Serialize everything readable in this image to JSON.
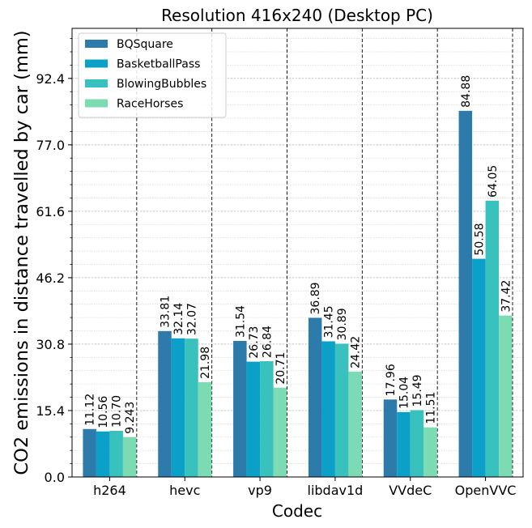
{
  "chart_data": {
    "type": "bar",
    "title": "Resolution 416x240 (Desktop PC)",
    "xlabel": "Codec",
    "ylabel": "CO2 emissions in distance travelled by car (mm)",
    "categories": [
      "h264",
      "hevc",
      "vp9",
      "libdav1d",
      "VVdeC",
      "OpenVVC"
    ],
    "ylim": [
      0,
      104.0
    ],
    "yticks": [
      "0.0",
      "15.4",
      "30.8",
      "46.2",
      "61.6",
      "77.0",
      "92.4"
    ],
    "ytick_values": [
      0.0,
      15.4,
      30.8,
      46.2,
      61.6,
      77.0,
      92.4
    ],
    "grid": true,
    "legend_position": "top-left",
    "series": [
      {
        "name": "BQSquare",
        "color": "#2c7bab",
        "values": [
          11.12,
          33.81,
          31.54,
          36.89,
          17.96,
          84.88
        ],
        "labels": [
          "11.12",
          "33.81",
          "31.54",
          "36.89",
          "17.96",
          "84.88"
        ]
      },
      {
        "name": "BasketballPass",
        "color": "#0aa0c8",
        "values": [
          10.56,
          32.14,
          26.73,
          31.45,
          15.04,
          50.58
        ],
        "labels": [
          "10.56",
          "32.14",
          "26.73",
          "31.45",
          "15.04",
          "50.58"
        ]
      },
      {
        "name": "BlowingBubbles",
        "color": "#38c1bd",
        "values": [
          10.7,
          32.07,
          26.84,
          30.89,
          15.49,
          64.05
        ],
        "labels": [
          "10.70",
          "32.07",
          "26.84",
          "30.89",
          "15.49",
          "64.05"
        ]
      },
      {
        "name": "RaceHorses",
        "color": "#7ddbb3",
        "values": [
          9.243,
          21.98,
          20.71,
          24.42,
          11.51,
          37.42
        ],
        "labels": [
          "9.243",
          "21.98",
          "20.71",
          "24.42",
          "11.51",
          "37.42"
        ]
      }
    ]
  }
}
